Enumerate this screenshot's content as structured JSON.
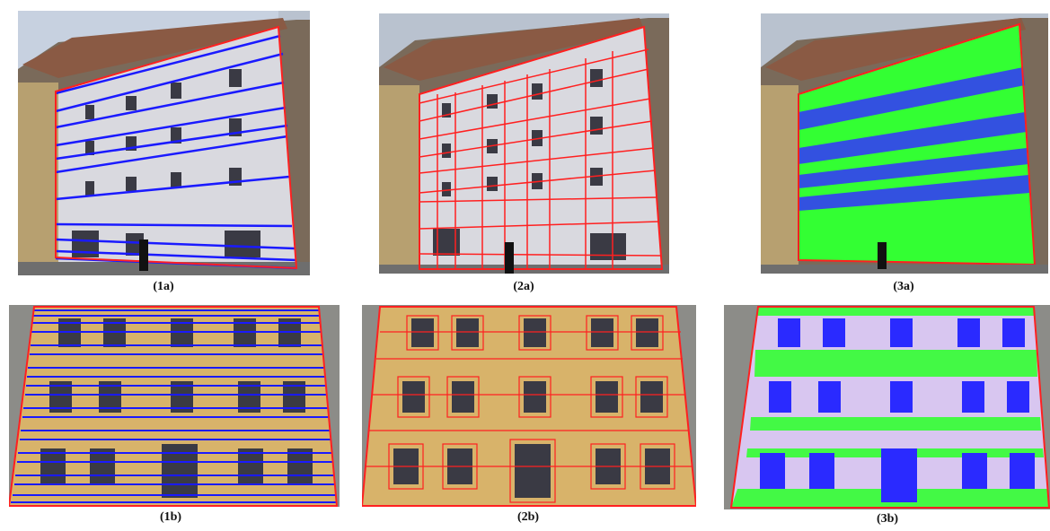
{
  "panels": [
    {
      "id": "1a",
      "caption": "(1a)",
      "overlay": "blue-lines",
      "facade": "grey"
    },
    {
      "id": "2a",
      "caption": "(2a)",
      "overlay": "red-boxes",
      "facade": "grey"
    },
    {
      "id": "3a",
      "caption": "(3a)",
      "overlay": "green-blue-fill",
      "facade": "grey"
    },
    {
      "id": "1b",
      "caption": "(1b)",
      "overlay": "blue-lines",
      "facade": "yellow"
    },
    {
      "id": "2b",
      "caption": "(2b)",
      "overlay": "red-boxes",
      "facade": "yellow"
    },
    {
      "id": "3b",
      "caption": "(3b)",
      "overlay": "green-blue-fill",
      "facade": "yellow"
    }
  ],
  "colors": {
    "blue_lines": "#1a1aff",
    "red_lines": "#ff2020",
    "green_fill": "#33ff33",
    "blue_fill": "#3333ff",
    "facade_grey": "#d9d9df",
    "facade_yellow": "#d8b36a",
    "roof": "#8a5a44",
    "window": "#3a3a44"
  }
}
